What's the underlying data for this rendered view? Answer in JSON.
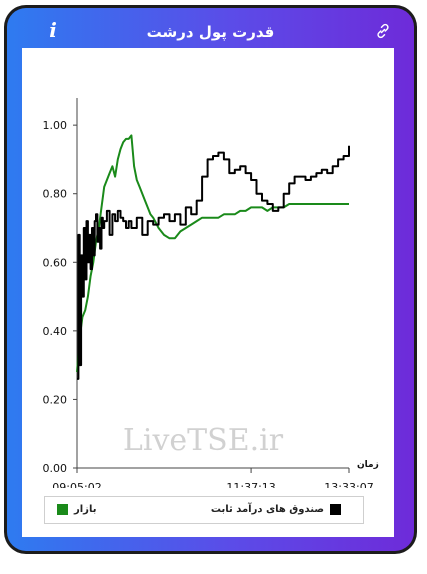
{
  "header": {
    "title": "قدرت پول درشت",
    "info_icon": "info-icon",
    "link_icon": "link-icon"
  },
  "watermark": "LiveTSE.ir",
  "colors": {
    "gradient_start": "#2e7bf0",
    "gradient_end": "#6e2bd9",
    "market": "#1a8a1a",
    "fixed_income": "#000000"
  },
  "chart_data": {
    "type": "line",
    "xlabel": "زمان",
    "x_ticks": [
      "09:05:02",
      "11:37:13",
      "13:33:07"
    ],
    "y_ticks": [
      "0.00",
      "0.20",
      "0.40",
      "0.60",
      "0.80",
      "1.00"
    ],
    "ylim": [
      0,
      1.05
    ],
    "grid": false,
    "legend_position": "bottom",
    "series": [
      {
        "name": "صندوق های درآمد ثابت",
        "color": "#000000",
        "t": [
          0,
          0.005,
          0.01,
          0.015,
          0.02,
          0.025,
          0.03,
          0.035,
          0.04,
          0.045,
          0.05,
          0.055,
          0.06,
          0.065,
          0.07,
          0.075,
          0.08,
          0.085,
          0.09,
          0.095,
          0.1,
          0.11,
          0.12,
          0.13,
          0.14,
          0.15,
          0.16,
          0.17,
          0.18,
          0.19,
          0.2,
          0.22,
          0.24,
          0.26,
          0.28,
          0.3,
          0.32,
          0.34,
          0.36,
          0.38,
          0.4,
          0.42,
          0.44,
          0.46,
          0.48,
          0.5,
          0.52,
          0.54,
          0.56,
          0.58,
          0.6,
          0.62,
          0.64,
          0.66,
          0.68,
          0.7,
          0.72,
          0.74,
          0.76,
          0.78,
          0.8,
          0.82,
          0.84,
          0.86,
          0.88,
          0.9,
          0.92,
          0.94,
          0.96,
          0.98,
          1.0
        ],
        "values": [
          0.26,
          0.68,
          0.3,
          0.62,
          0.5,
          0.7,
          0.55,
          0.72,
          0.6,
          0.68,
          0.58,
          0.7,
          0.62,
          0.72,
          0.74,
          0.66,
          0.7,
          0.64,
          0.73,
          0.7,
          0.72,
          0.75,
          0.68,
          0.74,
          0.72,
          0.75,
          0.73,
          0.72,
          0.7,
          0.72,
          0.7,
          0.73,
          0.68,
          0.72,
          0.71,
          0.73,
          0.74,
          0.72,
          0.74,
          0.71,
          0.76,
          0.74,
          0.78,
          0.85,
          0.9,
          0.91,
          0.92,
          0.9,
          0.86,
          0.87,
          0.88,
          0.86,
          0.84,
          0.8,
          0.78,
          0.77,
          0.75,
          0.76,
          0.8,
          0.83,
          0.85,
          0.85,
          0.84,
          0.85,
          0.86,
          0.87,
          0.86,
          0.88,
          0.9,
          0.91,
          0.94
        ]
      },
      {
        "name": "بازار",
        "color": "#1a8a1a",
        "t": [
          0,
          0.01,
          0.02,
          0.03,
          0.04,
          0.05,
          0.06,
          0.07,
          0.08,
          0.09,
          0.1,
          0.11,
          0.12,
          0.13,
          0.14,
          0.15,
          0.16,
          0.17,
          0.18,
          0.19,
          0.2,
          0.21,
          0.22,
          0.23,
          0.24,
          0.25,
          0.26,
          0.27,
          0.28,
          0.3,
          0.32,
          0.34,
          0.36,
          0.38,
          0.4,
          0.42,
          0.44,
          0.46,
          0.48,
          0.5,
          0.52,
          0.54,
          0.56,
          0.58,
          0.6,
          0.62,
          0.64,
          0.66,
          0.68,
          0.7,
          0.72,
          0.74,
          0.76,
          0.78,
          0.8,
          0.82,
          0.84,
          0.86,
          0.88,
          0.9,
          0.92,
          0.94,
          0.96,
          0.98,
          1.0
        ],
        "values": [
          0.28,
          0.38,
          0.44,
          0.46,
          0.5,
          0.56,
          0.6,
          0.66,
          0.7,
          0.76,
          0.82,
          0.84,
          0.86,
          0.88,
          0.85,
          0.9,
          0.93,
          0.95,
          0.96,
          0.96,
          0.97,
          0.88,
          0.84,
          0.82,
          0.8,
          0.78,
          0.76,
          0.74,
          0.73,
          0.7,
          0.68,
          0.67,
          0.67,
          0.69,
          0.7,
          0.71,
          0.72,
          0.73,
          0.73,
          0.73,
          0.73,
          0.74,
          0.74,
          0.74,
          0.75,
          0.75,
          0.76,
          0.76,
          0.76,
          0.75,
          0.76,
          0.76,
          0.76,
          0.77,
          0.77,
          0.77,
          0.77,
          0.77,
          0.77,
          0.77,
          0.77,
          0.77,
          0.77,
          0.77,
          0.77
        ]
      }
    ]
  }
}
